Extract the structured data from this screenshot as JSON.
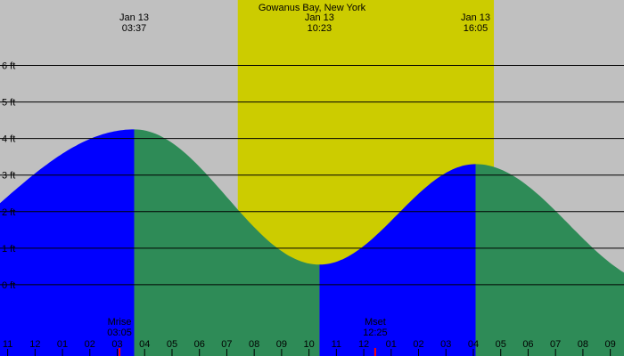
{
  "chart_data": {
    "type": "area",
    "title": "Gowanus Bay, New York",
    "y_unit": "ft",
    "ylim": [
      -1.95,
      7.79
    ],
    "x_range_hours": [
      -1.28,
      21.5
    ],
    "daylight_hours": [
      7.4,
      16.75
    ],
    "grid_levels": [
      6,
      5,
      4,
      3,
      2,
      1,
      0
    ],
    "y_tick_labels": [
      "6 ft",
      "5 ft",
      "4 ft",
      "3 ft",
      "2 ft",
      "1 ft",
      "0 ft"
    ],
    "x_ticks": [
      {
        "h": -1,
        "label": "11"
      },
      {
        "h": 0,
        "label": "12"
      },
      {
        "h": 1,
        "label": "01"
      },
      {
        "h": 2,
        "label": "02"
      },
      {
        "h": 3,
        "label": "03"
      },
      {
        "h": 4,
        "label": "04"
      },
      {
        "h": 5,
        "label": "05"
      },
      {
        "h": 6,
        "label": "06"
      },
      {
        "h": 7,
        "label": "07"
      },
      {
        "h": 8,
        "label": "08"
      },
      {
        "h": 9,
        "label": "09"
      },
      {
        "h": 10,
        "label": "10"
      },
      {
        "h": 11,
        "label": "11"
      },
      {
        "h": 12,
        "label": "12"
      },
      {
        "h": 13,
        "label": "01"
      },
      {
        "h": 14,
        "label": "02"
      },
      {
        "h": 15,
        "label": "03"
      },
      {
        "h": 16,
        "label": "04"
      },
      {
        "h": 17,
        "label": "05"
      },
      {
        "h": 18,
        "label": "06"
      },
      {
        "h": 19,
        "label": "07"
      },
      {
        "h": 20,
        "label": "08"
      },
      {
        "h": 21,
        "label": "09"
      }
    ],
    "tides": [
      {
        "h": -6.5,
        "ft": 0.0
      },
      {
        "h": 3.617,
        "ft": 4.25,
        "date": "Jan 13",
        "time": "03:37"
      },
      {
        "h": 10.383,
        "ft": 0.55,
        "date": "Jan 13",
        "time": "10:23"
      },
      {
        "h": 16.083,
        "ft": 3.3,
        "date": "Jan 13",
        "time": "16:05"
      },
      {
        "h": 22.9,
        "ft": 0.0,
        "date": "Jan 13",
        "time": ""
      }
    ],
    "moon_events": [
      {
        "name": "Mrise",
        "time": "03:05",
        "h": 3.083
      },
      {
        "name": "Mset",
        "time": "12:25",
        "h": 12.417
      }
    ],
    "colors": {
      "background": "#c0c0c0",
      "daylight": "#cccc00",
      "rising": "#0000ff",
      "falling": "#2e8b57",
      "grid": "#000000",
      "moon_marker": "#ff0000"
    }
  }
}
